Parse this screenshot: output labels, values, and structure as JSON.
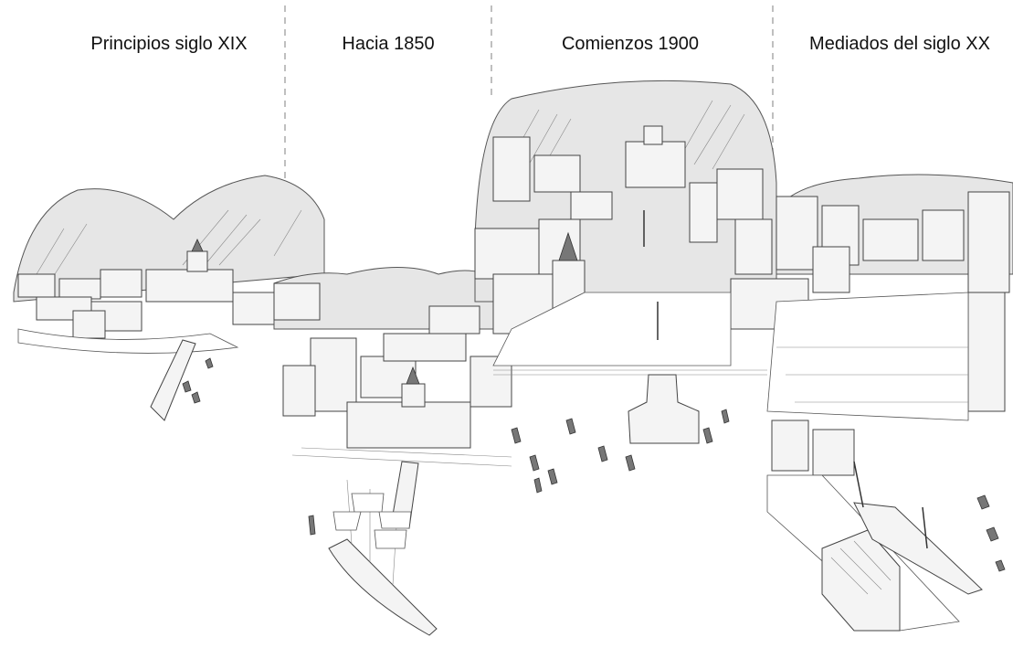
{
  "panels": [
    {
      "label": "Principios siglo XIX"
    },
    {
      "label": "Hacia 1850"
    },
    {
      "label": "Comienzos 1900"
    },
    {
      "label": "Mediados del siglo XX"
    }
  ]
}
